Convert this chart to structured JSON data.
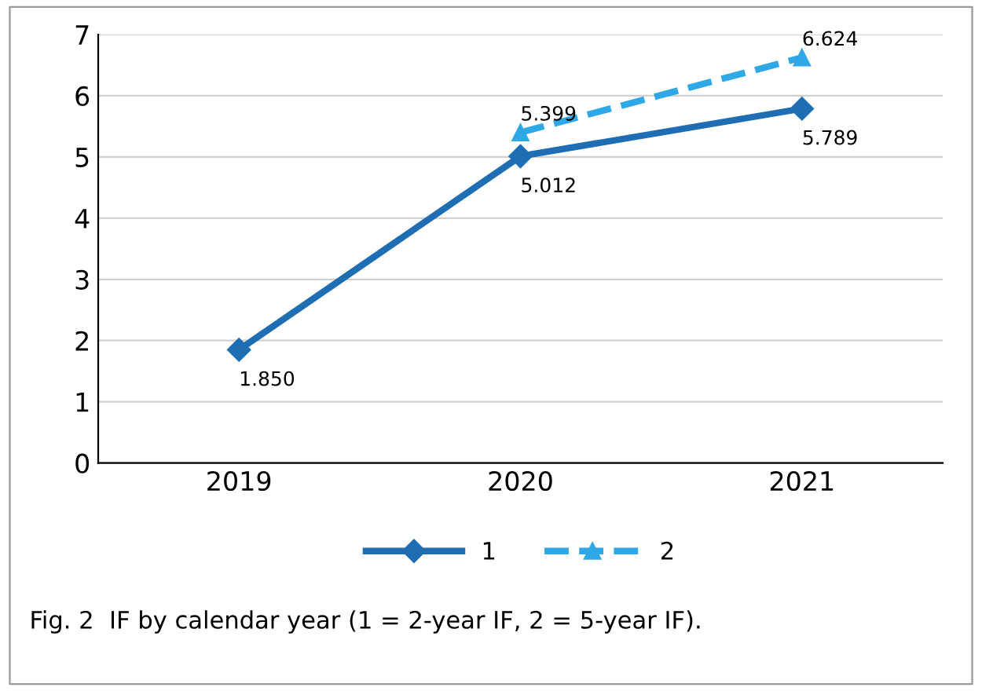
{
  "chart_data": {
    "type": "line",
    "categories": [
      "2019",
      "2020",
      "2021"
    ],
    "series": [
      {
        "name": "1",
        "color": "#1f6db3",
        "values": [
          1.85,
          5.012,
          5.789
        ],
        "value_labels": [
          "1.850",
          "5.012",
          "5.789"
        ],
        "marker": "diamond",
        "line_style": "solid"
      },
      {
        "name": "2",
        "color": "#2ea8e6",
        "values": [
          null,
          5.399,
          6.624
        ],
        "value_labels": [
          null,
          "5.399",
          "6.624"
        ],
        "marker": "triangle",
        "line_style": "dashed"
      }
    ],
    "ylim": [
      0,
      7
    ],
    "yticks": [
      0,
      1,
      2,
      3,
      4,
      5,
      6,
      7
    ],
    "grid": "y",
    "legend": "bottom",
    "annotations": [
      "Fig. 2  IF by calendar year (1 = 2-year IF, 2 = 5-year IF)."
    ]
  }
}
